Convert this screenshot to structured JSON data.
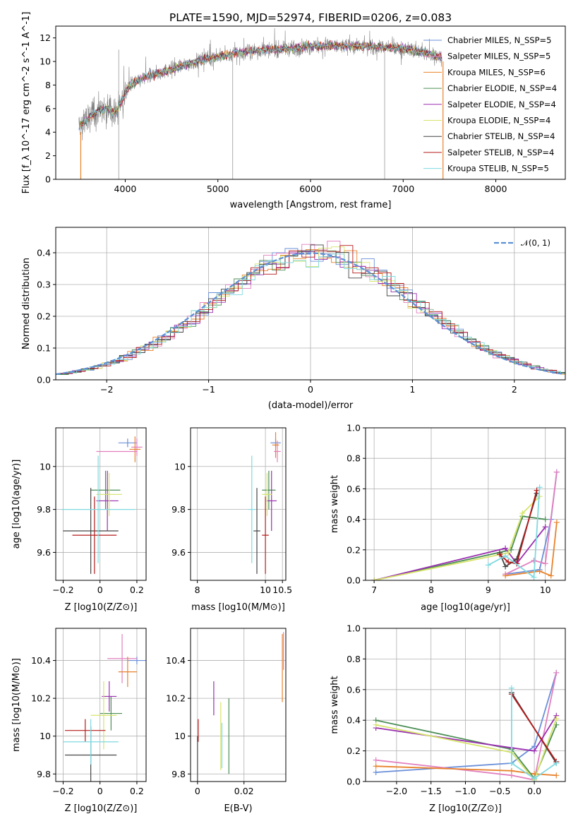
{
  "figure_title": "PLATE=1590, MJD=52974, FIBERID=0206, z=0.083",
  "series": [
    {
      "name": "Chabrier MILES, N_SSP=5",
      "short": "Chabrier MILES",
      "nssp": "5",
      "color": "#6a8fd8"
    },
    {
      "name": "Salpeter MILES, N_SSP=5",
      "short": "Salpeter MILES",
      "nssp": "5",
      "color": "#e27fbf"
    },
    {
      "name": "Kroupa MILES, N_SSP=6",
      "short": "Kroupa MILES",
      "nssp": "6",
      "color": "#e8822c"
    },
    {
      "name": "Chabrier ELODIE, N_SSP=4",
      "short": "Chabrier ELODIE",
      "nssp": "4",
      "color": "#4d8f56"
    },
    {
      "name": "Salpeter ELODIE, N_SSP=4",
      "short": "Salpeter ELODIE",
      "nssp": "4",
      "color": "#9a2fb0"
    },
    {
      "name": "Kroupa ELODIE, N_SSP=4",
      "short": "Kroupa ELODIE",
      "nssp": "4",
      "color": "#d6e46a"
    },
    {
      "name": "Chabrier STELIB, N_SSP=4",
      "short": "Chabrier STELIB",
      "nssp": "4",
      "color": "#444444"
    },
    {
      "name": "Salpeter STELIB, N_SSP=4",
      "short": "Salpeter STELIB",
      "nssp": "4",
      "color": "#b51a1a"
    },
    {
      "name": "Kroupa STELIB, N_SSP=5",
      "short": "Kroupa STELIB",
      "nssp": "5",
      "color": "#7fd9e0"
    }
  ],
  "chart_data": [
    {
      "id": "spectrum",
      "type": "line",
      "xlabel": "wavelength [Angstrom, rest frame]",
      "ylabel": "Flux [f_λ 10^-17 erg cm^-2 s^-1 A^-1]",
      "xlim": [
        3250,
        8750
      ],
      "ylim": [
        0,
        13
      ],
      "xticks": [
        4000,
        5000,
        6000,
        7000,
        8000
      ],
      "yticks": [
        0,
        2,
        4,
        6,
        8,
        10,
        12
      ],
      "data_color": "#808080",
      "continuum": {
        "x": [
          3500,
          3600,
          3700,
          3800,
          3900,
          3950,
          4050,
          4200,
          4400,
          4600,
          4800,
          5000,
          5200,
          5500,
          5800,
          6000,
          6300,
          6600,
          7000,
          7200,
          7400
        ],
        "y": [
          4.5,
          5.2,
          5.8,
          6.0,
          5.6,
          6.5,
          8.0,
          8.6,
          9.1,
          9.6,
          10.1,
          10.4,
          10.7,
          11.0,
          11.1,
          11.3,
          11.3,
          11.3,
          11.1,
          10.8,
          10.4
        ]
      },
      "legend_position": "upper-right"
    },
    {
      "id": "residuals",
      "type": "histogram",
      "xlabel": "(data-model)/error",
      "ylabel": "Normed distribution",
      "xlim": [
        -2.5,
        2.5
      ],
      "ylim": [
        0,
        0.48
      ],
      "xticks": [
        -2,
        -1,
        0,
        1,
        2
      ],
      "yticks": [
        0.0,
        0.1,
        0.2,
        0.3,
        0.4
      ],
      "grid": true,
      "bin_width": 0.125,
      "reference_curve": {
        "name": "N(0,1)",
        "label": "𝒩(0, 1)",
        "mean": 0.0,
        "sigma": 1.0,
        "color": "#5b8fd6"
      },
      "legend_position": "upper-right"
    },
    {
      "id": "age-vs-Z",
      "type": "errorbar",
      "xlabel": "Z [log10(Z/Z⊙)]",
      "ylabel": "age [log10(age/yr)]",
      "xlim": [
        -0.24,
        0.25
      ],
      "ylim": [
        9.47,
        10.18
      ],
      "xticks": [
        -0.2,
        0.0,
        0.2
      ],
      "yticks": [
        9.6,
        9.8,
        10.0
      ],
      "points": [
        {
          "series": 0,
          "x": 0.15,
          "y": 10.11,
          "xerr": 0.05,
          "yerr": 0.02
        },
        {
          "series": 1,
          "x": 0.2,
          "y": 10.09,
          "xerr": 0.03,
          "yerr": 0.04
        },
        {
          "series": 2,
          "x": 0.19,
          "y": 10.08,
          "xerr": 0.03,
          "yerr": 0.06
        },
        {
          "series": 3,
          "x": 0.03,
          "y": 9.89,
          "xerr": 0.08,
          "yerr": 0.09
        },
        {
          "series": 4,
          "x": 0.04,
          "y": 9.84,
          "xerr": 0.06,
          "yerr": 0.14
        },
        {
          "series": 5,
          "x": 0.05,
          "y": 9.87,
          "xerr": 0.07,
          "yerr": 0.1
        },
        {
          "series": 6,
          "x": -0.05,
          "y": 9.7,
          "xerr": 0.15,
          "yerr": 0.2
        },
        {
          "series": 7,
          "x": -0.03,
          "y": 9.68,
          "xerr": 0.12,
          "yerr": 0.18
        },
        {
          "series": 8,
          "x": -0.01,
          "y": 9.8,
          "xerr": 0.2,
          "yerr": 0.25
        },
        {
          "series": 1,
          "x": 0.09,
          "y": 10.07,
          "xerr": 0.11,
          "yerr": 0.0
        }
      ],
      "grid": true
    },
    {
      "id": "age-vs-mass",
      "type": "errorbar",
      "xlabel": "mass [log10(M/M⊙)]",
      "ylabel": "",
      "xlim": [
        7.8,
        10.6
      ],
      "ylim": [
        9.47,
        10.18
      ],
      "xticks": [
        8.0,
        10.0,
        10.5
      ],
      "yticks": [
        9.6,
        9.8,
        10.0
      ],
      "points": [
        {
          "series": 0,
          "x": 10.3,
          "y": 10.11,
          "xerr": 0.15,
          "yerr": 0.02
        },
        {
          "series": 1,
          "x": 10.35,
          "y": 10.07,
          "xerr": 0.1,
          "yerr": 0.05
        },
        {
          "series": 2,
          "x": 10.3,
          "y": 10.1,
          "xerr": 0.1,
          "yerr": 0.06
        },
        {
          "series": 3,
          "x": 10.1,
          "y": 9.89,
          "xerr": 0.2,
          "yerr": 0.09
        },
        {
          "series": 4,
          "x": 10.18,
          "y": 9.84,
          "xerr": 0.15,
          "yerr": 0.14
        },
        {
          "series": 5,
          "x": 10.05,
          "y": 9.87,
          "xerr": 0.15,
          "yerr": 0.1
        },
        {
          "series": 6,
          "x": 9.75,
          "y": 9.7,
          "xerr": 0.1,
          "yerr": 0.2
        },
        {
          "series": 7,
          "x": 10.0,
          "y": 9.68,
          "xerr": 0.1,
          "yerr": 0.18
        },
        {
          "series": 8,
          "x": 9.6,
          "y": 9.8,
          "xerr": 0.1,
          "yerr": 0.25
        }
      ],
      "grid": true
    },
    {
      "id": "weight-vs-age",
      "type": "line",
      "xlabel": "age [log10(age/yr)]",
      "ylabel": "mass weight",
      "xlim": [
        6.85,
        10.35
      ],
      "ylim": [
        0,
        1.0
      ],
      "xticks": [
        7,
        8,
        9,
        10
      ],
      "yticks": [
        0.0,
        0.2,
        0.4,
        0.6,
        0.8,
        1.0
      ],
      "grid": true,
      "lines": [
        {
          "series": 0,
          "x": [
            9.3,
            9.9,
            10.1,
            10.2
          ],
          "y": [
            0.04,
            0.07,
            0.4,
            0.71
          ]
        },
        {
          "series": 1,
          "x": [
            9.3,
            9.8,
            10.0,
            10.2
          ],
          "y": [
            0.04,
            0.13,
            0.11,
            0.71
          ]
        },
        {
          "series": 2,
          "x": [
            9.3,
            9.9,
            10.1,
            10.2
          ],
          "y": [
            0.03,
            0.06,
            0.03,
            0.38
          ]
        },
        {
          "series": 3,
          "x": [
            7.0,
            9.4,
            9.6,
            10.0
          ],
          "y": [
            0.0,
            0.2,
            0.42,
            0.4
          ]
        },
        {
          "series": 4,
          "x": [
            7.0,
            9.3,
            9.5,
            10.0
          ],
          "y": [
            0.0,
            0.21,
            0.11,
            0.35
          ]
        },
        {
          "series": 5,
          "x": [
            7.0,
            9.35,
            9.6,
            9.9
          ],
          "y": [
            0.0,
            0.18,
            0.44,
            0.55
          ]
        },
        {
          "series": 6,
          "x": [
            9.2,
            9.3,
            9.5,
            9.85
          ],
          "y": [
            0.18,
            0.09,
            0.14,
            0.57
          ]
        },
        {
          "series": 7,
          "x": [
            9.2,
            9.35,
            9.5,
            9.85
          ],
          "y": [
            0.17,
            0.12,
            0.11,
            0.59
          ]
        },
        {
          "series": 8,
          "x": [
            9.0,
            9.3,
            9.8,
            9.9
          ],
          "y": [
            0.1,
            0.16,
            0.02,
            0.61
          ]
        }
      ]
    },
    {
      "id": "mass-vs-Z",
      "type": "errorbar",
      "xlabel": "Z [log10(Z/Z⊙)]",
      "ylabel": "mass [log10(M/M⊙)]",
      "xlim": [
        -0.24,
        0.25
      ],
      "ylim": [
        9.76,
        10.57
      ],
      "xticks": [
        -0.2,
        0.0,
        0.2
      ],
      "yticks": [
        9.8,
        10.0,
        10.2,
        10.4
      ],
      "points": [
        {
          "series": 0,
          "x": 0.2,
          "y": 10.4,
          "xerr": 0.05,
          "yerr": 0.02
        },
        {
          "series": 1,
          "x": 0.12,
          "y": 10.41,
          "xerr": 0.08,
          "yerr": 0.13
        },
        {
          "series": 2,
          "x": 0.15,
          "y": 10.34,
          "xerr": 0.05,
          "yerr": 0.08
        },
        {
          "series": 3,
          "x": 0.06,
          "y": 10.12,
          "xerr": 0.06,
          "yerr": 0.09
        },
        {
          "series": 4,
          "x": 0.05,
          "y": 10.21,
          "xerr": 0.04,
          "yerr": 0.08
        },
        {
          "series": 5,
          "x": 0.02,
          "y": 10.11,
          "xerr": 0.07,
          "yerr": 0.18
        },
        {
          "series": 6,
          "x": -0.05,
          "y": 9.9,
          "xerr": 0.14,
          "yerr": 0.15
        },
        {
          "series": 7,
          "x": -0.08,
          "y": 10.03,
          "xerr": 0.11,
          "yerr": 0.06
        },
        {
          "series": 8,
          "x": -0.05,
          "y": 9.97,
          "xerr": 0.15,
          "yerr": 0.12
        }
      ],
      "grid": true
    },
    {
      "id": "mass-vs-EBV",
      "type": "errorbar",
      "xlabel": "E(B-V)",
      "ylabel": "",
      "xlim": [
        -0.003,
        0.038
      ],
      "ylim": [
        9.76,
        10.57
      ],
      "xticks": [
        0.0,
        0.02
      ],
      "yticks": [
        9.8,
        10.0,
        10.2,
        10.4
      ],
      "points": [
        {
          "series": 2,
          "x": 0.0365,
          "y": 10.36,
          "xerr": 0,
          "yerr": 0.18
        },
        {
          "series": 1,
          "x": 0.037,
          "y": 10.45,
          "xerr": 0,
          "yerr": 0.1
        },
        {
          "series": 4,
          "x": 0.007,
          "y": 10.2,
          "xerr": 0,
          "yerr": 0.09
        },
        {
          "series": 5,
          "x": 0.01,
          "y": 10.0,
          "xerr": 0,
          "yerr": 0.18
        },
        {
          "series": 3,
          "x": 0.0135,
          "y": 10.0,
          "xerr": 0,
          "yerr": 0.2
        },
        {
          "series": 8,
          "x": 0.0105,
          "y": 9.95,
          "xerr": 0,
          "yerr": 0.12
        },
        {
          "series": 7,
          "x": 0.0003,
          "y": 10.03,
          "xerr": 0,
          "yerr": 0.06
        },
        {
          "series": 6,
          "x": 0.0,
          "y": 9.88,
          "xerr": 0,
          "yerr": 0.12
        }
      ],
      "grid": true
    },
    {
      "id": "weight-vs-Z",
      "type": "line",
      "xlabel": "Z [log10(Z/Z⊙)]",
      "ylabel": "mass weight",
      "xlim": [
        -2.45,
        0.45
      ],
      "ylim": [
        0,
        1.0
      ],
      "xticks": [
        -2.0,
        -1.5,
        -1.0,
        -0.5,
        0.0
      ],
      "xtick_labels": [
        "−2.0",
        "−1.5",
        "−1.0",
        "−0.5",
        "0.0"
      ],
      "yticks": [
        0.0,
        0.2,
        0.4,
        0.6,
        0.8,
        1.0
      ],
      "grid": true,
      "lines": [
        {
          "series": 0,
          "x": [
            -2.3,
            -0.33,
            0.0,
            0.32
          ],
          "y": [
            0.06,
            0.12,
            0.23,
            0.71
          ]
        },
        {
          "series": 1,
          "x": [
            -2.3,
            -0.33,
            0.0,
            0.32
          ],
          "y": [
            0.14,
            0.04,
            0.01,
            0.71
          ]
        },
        {
          "series": 2,
          "x": [
            -2.3,
            -0.33,
            0.0,
            0.32
          ],
          "y": [
            0.1,
            0.07,
            0.05,
            0.04
          ]
        },
        {
          "series": 3,
          "x": [
            -2.3,
            -0.33,
            0.0,
            0.32
          ],
          "y": [
            0.4,
            0.21,
            0.02,
            0.37
          ]
        },
        {
          "series": 4,
          "x": [
            -2.3,
            -0.33,
            0.0,
            0.32
          ],
          "y": [
            0.35,
            0.22,
            0.2,
            0.43
          ]
        },
        {
          "series": 5,
          "x": [
            -2.3,
            -0.33,
            0.0,
            0.32
          ],
          "y": [
            0.37,
            0.19,
            0.01,
            0.41
          ]
        },
        {
          "series": 6,
          "x": [
            -0.33,
            0.32
          ],
          "y": [
            0.58,
            0.12
          ]
        },
        {
          "series": 7,
          "x": [
            -0.33,
            0.32
          ],
          "y": [
            0.57,
            0.13
          ]
        },
        {
          "series": 8,
          "x": [
            -0.33,
            -0.33,
            0.0,
            0.32
          ],
          "y": [
            0.61,
            0.12,
            0.02,
            0.12
          ]
        }
      ]
    }
  ]
}
